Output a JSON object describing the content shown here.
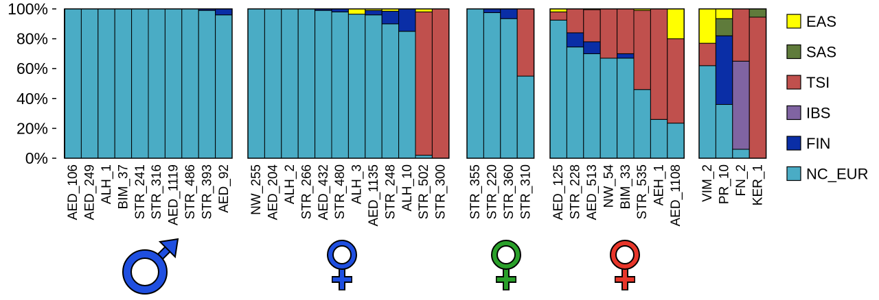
{
  "chart_data": {
    "type": "bar",
    "stacked": true,
    "normalized_percent": true,
    "ylim": [
      0,
      100
    ],
    "yticks": [
      "0%",
      "20%",
      "40%",
      "60%",
      "80%",
      "100%"
    ],
    "components": [
      "NC_EUR",
      "FIN",
      "IBS",
      "TSI",
      "SAS",
      "EAS"
    ],
    "legend": {
      "placement": "right",
      "entries": [
        "EAS",
        "SAS",
        "TSI",
        "IBS",
        "FIN",
        "NC_EUR"
      ]
    },
    "colors": {
      "EAS": "#ffff00",
      "SAS": "#5f7b3b",
      "TSI": "#c0504d",
      "IBS": "#8064a2",
      "FIN": "#0a2ea6",
      "NC_EUR": "#4aacc5"
    },
    "groups": [
      {
        "symbol": "male",
        "symbol_color": "#1f4fe0",
        "bars": [
          {
            "label": "AED_106",
            "NC_EUR": 100,
            "FIN": 0,
            "IBS": 0,
            "TSI": 0,
            "SAS": 0,
            "EAS": 0
          },
          {
            "label": "AED_249",
            "NC_EUR": 100,
            "FIN": 0,
            "IBS": 0,
            "TSI": 0,
            "SAS": 0,
            "EAS": 0
          },
          {
            "label": "ALH_1",
            "NC_EUR": 100,
            "FIN": 0,
            "IBS": 0,
            "TSI": 0,
            "SAS": 0,
            "EAS": 0
          },
          {
            "label": "BIM_37",
            "NC_EUR": 100,
            "FIN": 0,
            "IBS": 0,
            "TSI": 0,
            "SAS": 0,
            "EAS": 0
          },
          {
            "label": "STR_241",
            "NC_EUR": 100,
            "FIN": 0,
            "IBS": 0,
            "TSI": 0,
            "SAS": 0,
            "EAS": 0
          },
          {
            "label": "STR_316",
            "NC_EUR": 100,
            "FIN": 0,
            "IBS": 0,
            "TSI": 0,
            "SAS": 0,
            "EAS": 0
          },
          {
            "label": "AED_1119",
            "NC_EUR": 100,
            "FIN": 0,
            "IBS": 0,
            "TSI": 0,
            "SAS": 0,
            "EAS": 0
          },
          {
            "label": "STR_486",
            "NC_EUR": 100,
            "FIN": 0,
            "IBS": 0,
            "TSI": 0,
            "SAS": 0,
            "EAS": 0
          },
          {
            "label": "STR_393",
            "NC_EUR": 99,
            "FIN": 1,
            "IBS": 0,
            "TSI": 0,
            "SAS": 0,
            "EAS": 0
          },
          {
            "label": "AED_92",
            "NC_EUR": 96,
            "FIN": 4,
            "IBS": 0,
            "TSI": 0,
            "SAS": 0,
            "EAS": 0
          }
        ]
      },
      {
        "symbol": "female",
        "symbol_color": "#1f4fe0",
        "bars": [
          {
            "label": "NW_255",
            "NC_EUR": 100,
            "FIN": 0,
            "IBS": 0,
            "TSI": 0,
            "SAS": 0,
            "EAS": 0
          },
          {
            "label": "AED_204",
            "NC_EUR": 100,
            "FIN": 0,
            "IBS": 0,
            "TSI": 0,
            "SAS": 0,
            "EAS": 0
          },
          {
            "label": "ALH_2",
            "NC_EUR": 100,
            "FIN": 0,
            "IBS": 0,
            "TSI": 0,
            "SAS": 0,
            "EAS": 0
          },
          {
            "label": "STR_266",
            "NC_EUR": 100,
            "FIN": 0,
            "IBS": 0,
            "TSI": 0,
            "SAS": 0,
            "EAS": 0
          },
          {
            "label": "AED_432",
            "NC_EUR": 99,
            "FIN": 1,
            "IBS": 0,
            "TSI": 0,
            "SAS": 0,
            "EAS": 0
          },
          {
            "label": "STR_480",
            "NC_EUR": 98,
            "FIN": 2,
            "IBS": 0,
            "TSI": 0,
            "SAS": 0,
            "EAS": 0
          },
          {
            "label": "ALH_3",
            "NC_EUR": 96.5,
            "FIN": 0,
            "IBS": 0,
            "TSI": 0,
            "SAS": 0,
            "EAS": 3.5
          },
          {
            "label": "AED_1135",
            "NC_EUR": 96,
            "FIN": 3,
            "IBS": 0,
            "TSI": 0,
            "SAS": 0,
            "EAS": 1
          },
          {
            "label": "STR_248",
            "NC_EUR": 90,
            "FIN": 8.5,
            "IBS": 0,
            "TSI": 0,
            "SAS": 0,
            "EAS": 1.5
          },
          {
            "label": "ALH_10",
            "NC_EUR": 85,
            "FIN": 15,
            "IBS": 0,
            "TSI": 0,
            "SAS": 0,
            "EAS": 0
          },
          {
            "label": "STR_502",
            "NC_EUR": 2,
            "FIN": 0,
            "IBS": 0,
            "TSI": 96,
            "SAS": 0,
            "EAS": 2
          },
          {
            "label": "STR_300",
            "NC_EUR": 0,
            "FIN": 0,
            "IBS": 0,
            "TSI": 100,
            "SAS": 0,
            "EAS": 0
          }
        ]
      },
      {
        "symbol": "female",
        "symbol_color": "#2aa02a",
        "bars": [
          {
            "label": "STR_355",
            "NC_EUR": 100,
            "FIN": 0,
            "IBS": 0,
            "TSI": 0,
            "SAS": 0,
            "EAS": 0
          },
          {
            "label": "STR_220",
            "NC_EUR": 97.5,
            "FIN": 2.5,
            "IBS": 0,
            "TSI": 0,
            "SAS": 0,
            "EAS": 0
          },
          {
            "label": "STR_360",
            "NC_EUR": 93.5,
            "FIN": 6.5,
            "IBS": 0,
            "TSI": 0,
            "SAS": 0,
            "EAS": 0
          },
          {
            "label": "STR_310",
            "NC_EUR": 55,
            "FIN": 0,
            "IBS": 0,
            "TSI": 45,
            "SAS": 0,
            "EAS": 0
          }
        ]
      },
      {
        "symbol": "female",
        "symbol_color": "#e8362a",
        "bars": [
          {
            "label": "AED_125",
            "NC_EUR": 92.5,
            "FIN": 0,
            "IBS": 0,
            "TSI": 5.5,
            "SAS": 0,
            "EAS": 2
          },
          {
            "label": "STR_228",
            "NC_EUR": 74.5,
            "FIN": 9.5,
            "IBS": 0,
            "TSI": 16,
            "SAS": 0,
            "EAS": 0
          },
          {
            "label": "AED_513",
            "NC_EUR": 70,
            "FIN": 8,
            "IBS": 0,
            "TSI": 21.5,
            "SAS": 0,
            "EAS": 0.5
          },
          {
            "label": "NW_54",
            "NC_EUR": 67,
            "FIN": 0,
            "IBS": 0,
            "TSI": 33,
            "SAS": 0,
            "EAS": 0
          },
          {
            "label": "BIM_33",
            "NC_EUR": 67,
            "FIN": 3,
            "IBS": 0,
            "TSI": 30,
            "SAS": 0,
            "EAS": 0
          },
          {
            "label": "STR_535",
            "NC_EUR": 46,
            "FIN": 0,
            "IBS": 0,
            "TSI": 53,
            "SAS": 0,
            "EAS": 1
          },
          {
            "label": "AEH_1",
            "NC_EUR": 26,
            "FIN": 0,
            "IBS": 0,
            "TSI": 74,
            "SAS": 0,
            "EAS": 0
          },
          {
            "label": "AED_1108",
            "NC_EUR": 23.5,
            "FIN": 0,
            "IBS": 0,
            "TSI": 56.5,
            "SAS": 0,
            "EAS": 20
          }
        ]
      },
      {
        "symbol": "",
        "symbol_color": "",
        "bars": [
          {
            "label": "VIM_2",
            "NC_EUR": 62,
            "FIN": 0,
            "IBS": 0,
            "TSI": 15,
            "SAS": 0,
            "EAS": 23
          },
          {
            "label": "PR_10",
            "NC_EUR": 36,
            "FIN": 46,
            "IBS": 0,
            "TSI": 0,
            "SAS": 11.5,
            "EAS": 6.5
          },
          {
            "label": "FN_2",
            "NC_EUR": 6,
            "FIN": 0,
            "IBS": 59,
            "TSI": 35,
            "SAS": 0,
            "EAS": 0
          },
          {
            "label": "KER_1",
            "NC_EUR": 0,
            "FIN": 0,
            "IBS": 0,
            "TSI": 94.5,
            "SAS": 5.5,
            "EAS": 0
          }
        ]
      }
    ]
  }
}
